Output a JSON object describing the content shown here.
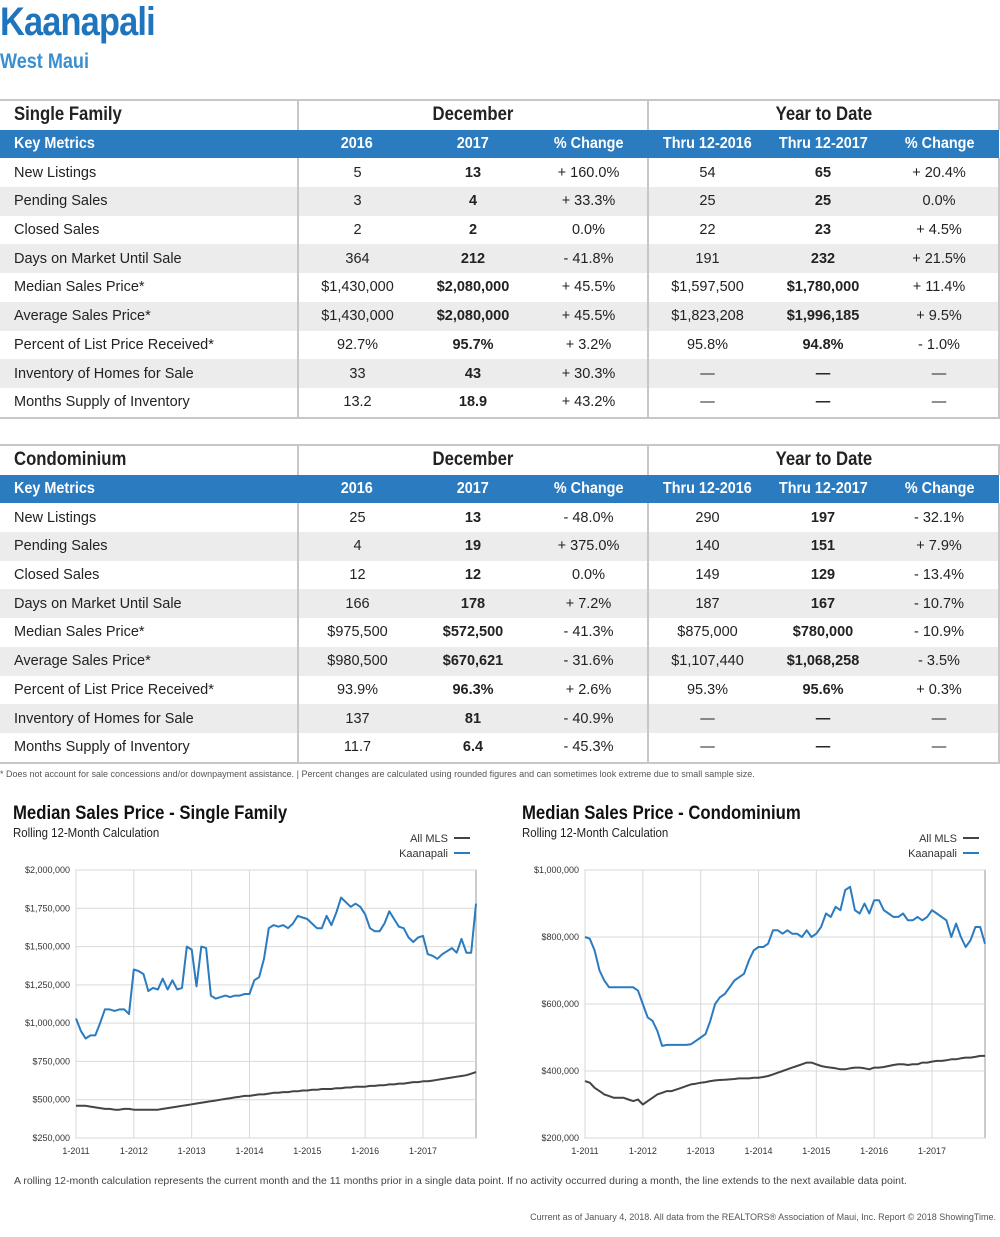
{
  "header": {
    "title": "Kaanapali",
    "subtitle": "West Maui"
  },
  "tables": [
    {
      "section": "Single Family",
      "group_december": "December",
      "group_ytd": "Year to Date",
      "columns": [
        "Key Metrics",
        "2016",
        "2017",
        "% Change",
        "Thru 12-2016",
        "Thru 12-2017",
        "% Change"
      ],
      "rows": [
        [
          "New Listings",
          "5",
          "13",
          "+ 160.0%",
          "54",
          "65",
          "+ 20.4%"
        ],
        [
          "Pending Sales",
          "3",
          "4",
          "+ 33.3%",
          "25",
          "25",
          "0.0%"
        ],
        [
          "Closed Sales",
          "2",
          "2",
          "0.0%",
          "22",
          "23",
          "+ 4.5%"
        ],
        [
          "Days on Market Until Sale",
          "364",
          "212",
          "- 41.8%",
          "191",
          "232",
          "+ 21.5%"
        ],
        [
          "Median Sales Price*",
          "$1,430,000",
          "$2,080,000",
          "+ 45.5%",
          "$1,597,500",
          "$1,780,000",
          "+ 11.4%"
        ],
        [
          "Average Sales Price*",
          "$1,430,000",
          "$2,080,000",
          "+ 45.5%",
          "$1,823,208",
          "$1,996,185",
          "+ 9.5%"
        ],
        [
          "Percent of List Price Received*",
          "92.7%",
          "95.7%",
          "+ 3.2%",
          "95.8%",
          "94.8%",
          "- 1.0%"
        ],
        [
          "Inventory of Homes for Sale",
          "33",
          "43",
          "+ 30.3%",
          "—",
          "—",
          "—"
        ],
        [
          "Months Supply of Inventory",
          "13.2",
          "18.9",
          "+ 43.2%",
          "—",
          "—",
          "—"
        ]
      ]
    },
    {
      "section": "Condominium",
      "group_december": "December",
      "group_ytd": "Year to Date",
      "columns": [
        "Key Metrics",
        "2016",
        "2017",
        "% Change",
        "Thru 12-2016",
        "Thru 12-2017",
        "% Change"
      ],
      "rows": [
        [
          "New Listings",
          "25",
          "13",
          "- 48.0%",
          "290",
          "197",
          "- 32.1%"
        ],
        [
          "Pending Sales",
          "4",
          "19",
          "+ 375.0%",
          "140",
          "151",
          "+ 7.9%"
        ],
        [
          "Closed Sales",
          "12",
          "12",
          "0.0%",
          "149",
          "129",
          "- 13.4%"
        ],
        [
          "Days on Market Until Sale",
          "166",
          "178",
          "+ 7.2%",
          "187",
          "167",
          "- 10.7%"
        ],
        [
          "Median Sales Price*",
          "$975,500",
          "$572,500",
          "- 41.3%",
          "$875,000",
          "$780,000",
          "- 10.9%"
        ],
        [
          "Average Sales Price*",
          "$980,500",
          "$670,621",
          "- 31.6%",
          "$1,107,440",
          "$1,068,258",
          "- 3.5%"
        ],
        [
          "Percent of List Price Received*",
          "93.9%",
          "96.3%",
          "+ 2.6%",
          "95.3%",
          "95.6%",
          "+ 0.3%"
        ],
        [
          "Inventory of Homes for Sale",
          "137",
          "81",
          "- 40.9%",
          "—",
          "—",
          "—"
        ],
        [
          "Months Supply of Inventory",
          "11.7",
          "6.4",
          "- 45.3%",
          "—",
          "—",
          "—"
        ]
      ]
    }
  ],
  "footnote": "* Does not account for sale concessions and/or downpayment assistance. | Percent changes are calculated using rounded figures and can sometimes look extreme due to small sample size.",
  "chart_data": [
    {
      "type": "line",
      "title": "Median Sales Price - Single Family",
      "subtitle": "Rolling 12-Month Calculation",
      "y_ticks": [
        "$2,000,000",
        "$1,750,000",
        "$1,500,000",
        "$1,250,000",
        "$1,000,000",
        "$750,000",
        "$500,000",
        "$250,000"
      ],
      "x_ticks": [
        "1-2011",
        "1-2012",
        "1-2013",
        "1-2014",
        "1-2015",
        "1-2016",
        "1-2017"
      ],
      "ylim": [
        250000,
        2000000
      ],
      "x_start": "2011-01",
      "x_end": "2017-12",
      "legend_position": "top-right",
      "series": [
        {
          "name": "All MLS",
          "color": "#444444",
          "values": [
            460000,
            460000,
            460000,
            455000,
            450000,
            445000,
            440000,
            440000,
            435000,
            435000,
            440000,
            440000,
            435000,
            435000,
            435000,
            435000,
            435000,
            435000,
            440000,
            445000,
            450000,
            455000,
            460000,
            465000,
            470000,
            475000,
            480000,
            485000,
            490000,
            495000,
            500000,
            505000,
            510000,
            515000,
            520000,
            525000,
            525000,
            530000,
            535000,
            535000,
            540000,
            545000,
            545000,
            550000,
            550000,
            555000,
            555000,
            560000,
            560000,
            565000,
            565000,
            570000,
            570000,
            570000,
            575000,
            575000,
            580000,
            580000,
            585000,
            585000,
            585000,
            590000,
            590000,
            595000,
            595000,
            600000,
            600000,
            605000,
            605000,
            610000,
            615000,
            615000,
            620000,
            620000,
            625000,
            630000,
            635000,
            640000,
            645000,
            650000,
            655000,
            660000,
            670000,
            680000
          ]
        },
        {
          "name": "Kaanapali",
          "color": "#2a7bc0",
          "values": [
            1030000,
            950000,
            900000,
            920000,
            920000,
            1000000,
            1090000,
            1090000,
            1080000,
            1090000,
            1090000,
            1060000,
            1350000,
            1340000,
            1320000,
            1210000,
            1230000,
            1220000,
            1290000,
            1220000,
            1280000,
            1220000,
            1230000,
            1500000,
            1480000,
            1240000,
            1500000,
            1490000,
            1180000,
            1160000,
            1170000,
            1180000,
            1170000,
            1180000,
            1180000,
            1190000,
            1190000,
            1280000,
            1300000,
            1420000,
            1620000,
            1640000,
            1630000,
            1640000,
            1620000,
            1650000,
            1700000,
            1690000,
            1680000,
            1650000,
            1620000,
            1620000,
            1700000,
            1640000,
            1720000,
            1820000,
            1790000,
            1760000,
            1780000,
            1760000,
            1710000,
            1620000,
            1600000,
            1600000,
            1650000,
            1730000,
            1680000,
            1630000,
            1620000,
            1560000,
            1530000,
            1560000,
            1570000,
            1450000,
            1440000,
            1420000,
            1450000,
            1470000,
            1490000,
            1460000,
            1550000,
            1460000,
            1460000,
            1780000
          ]
        }
      ]
    },
    {
      "type": "line",
      "title": "Median Sales Price - Condominium",
      "subtitle": "Rolling 12-Month Calculation",
      "y_ticks": [
        "$1,000,000",
        "$800,000",
        "$600,000",
        "$400,000",
        "$200,000"
      ],
      "x_ticks": [
        "1-2011",
        "1-2012",
        "1-2013",
        "1-2014",
        "1-2015",
        "1-2016",
        "1-2017"
      ],
      "ylim": [
        200000,
        1000000
      ],
      "x_start": "2011-01",
      "x_end": "2017-12",
      "legend_position": "top-right",
      "series": [
        {
          "name": "All MLS",
          "color": "#444444",
          "values": [
            370000,
            365000,
            350000,
            340000,
            330000,
            325000,
            320000,
            320000,
            320000,
            315000,
            310000,
            315000,
            300000,
            310000,
            320000,
            330000,
            335000,
            340000,
            340000,
            345000,
            350000,
            355000,
            360000,
            362000,
            365000,
            367000,
            370000,
            372000,
            373000,
            374000,
            375000,
            376000,
            378000,
            378000,
            378000,
            380000,
            380000,
            382000,
            385000,
            390000,
            395000,
            400000,
            405000,
            410000,
            415000,
            420000,
            425000,
            425000,
            420000,
            415000,
            412000,
            410000,
            408000,
            405000,
            405000,
            408000,
            410000,
            410000,
            408000,
            405000,
            410000,
            410000,
            412000,
            415000,
            418000,
            420000,
            420000,
            418000,
            420000,
            420000,
            425000,
            425000,
            428000,
            430000,
            430000,
            432000,
            435000,
            435000,
            438000,
            440000,
            440000,
            442000,
            445000,
            445000
          ]
        },
        {
          "name": "Kaanapali",
          "color": "#2a7bc0",
          "values": [
            800000,
            795000,
            760000,
            700000,
            670000,
            650000,
            650000,
            650000,
            650000,
            650000,
            650000,
            640000,
            600000,
            560000,
            550000,
            520000,
            475000,
            478000,
            478000,
            478000,
            478000,
            478000,
            480000,
            490000,
            500000,
            510000,
            550000,
            600000,
            620000,
            630000,
            650000,
            670000,
            680000,
            690000,
            730000,
            760000,
            770000,
            770000,
            780000,
            820000,
            820000,
            810000,
            820000,
            810000,
            810000,
            800000,
            820000,
            800000,
            810000,
            830000,
            870000,
            860000,
            890000,
            880000,
            940000,
            950000,
            880000,
            870000,
            900000,
            870000,
            910000,
            910000,
            880000,
            870000,
            860000,
            860000,
            870000,
            850000,
            850000,
            860000,
            850000,
            860000,
            880000,
            870000,
            860000,
            850000,
            800000,
            840000,
            800000,
            770000,
            790000,
            830000,
            830000,
            780000
          ]
        }
      ]
    }
  ],
  "rolling_note": "A rolling 12-month calculation represents the current month and the 11 months prior in a single data point. If no activity occurred during a month, the line extends to the next available data point.",
  "current_note": "Current as of January 4, 2018. All data from the REALTORS® Association of Maui, Inc. Report © 2018 ShowingTime."
}
